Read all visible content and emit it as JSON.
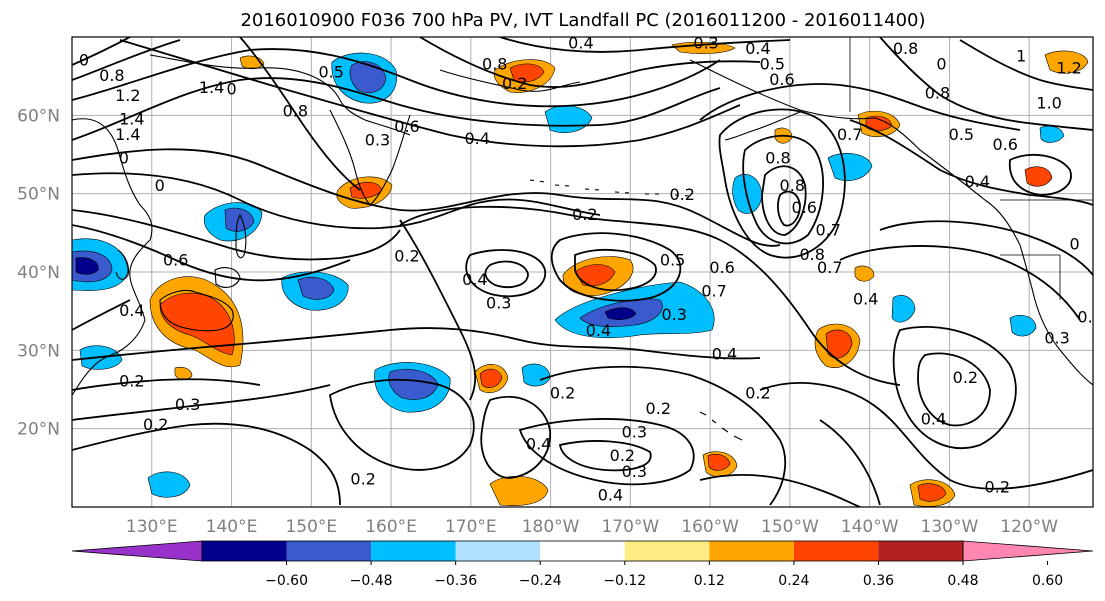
{
  "title": "2016010900 F036 700 hPa PV, IVT Landfall PC (2016011200 - 2016011400)",
  "map": {
    "lon_min": 120,
    "lon_max": 248,
    "lat_min": 10,
    "lat_max": 70,
    "lat_ticks": [
      {
        "value": 20,
        "label": "20°N"
      },
      {
        "value": 30,
        "label": "30°N"
      },
      {
        "value": 40,
        "label": "40°N"
      },
      {
        "value": 50,
        "label": "50°N"
      },
      {
        "value": 60,
        "label": "60°N"
      }
    ],
    "lon_ticks": [
      {
        "value": 130,
        "label": "130°E"
      },
      {
        "value": 140,
        "label": "140°E"
      },
      {
        "value": 150,
        "label": "150°E"
      },
      {
        "value": 160,
        "label": "160°E"
      },
      {
        "value": 170,
        "label": "170°E"
      },
      {
        "value": 180,
        "label": "180°W"
      },
      {
        "value": 190,
        "label": "170°W"
      },
      {
        "value": 200,
        "label": "160°W"
      },
      {
        "value": 210,
        "label": "150°W"
      },
      {
        "value": 220,
        "label": "140°W"
      },
      {
        "value": 230,
        "label": "130°W"
      },
      {
        "value": 240,
        "label": "120°W"
      }
    ],
    "contour_labels": [
      {
        "lon": 121.5,
        "lat": 67,
        "text": "0"
      },
      {
        "lon": 125,
        "lat": 65,
        "text": "0.8"
      },
      {
        "lon": 127,
        "lat": 62.5,
        "text": "1.2"
      },
      {
        "lon": 127.5,
        "lat": 59.5,
        "text": "1.4"
      },
      {
        "lon": 127,
        "lat": 57.5,
        "text": "1.4"
      },
      {
        "lon": 126.5,
        "lat": 54.5,
        "text": "0"
      },
      {
        "lon": 137.5,
        "lat": 63.5,
        "text": "1.4"
      },
      {
        "lon": 140,
        "lat": 63.3,
        "text": "0"
      },
      {
        "lon": 148,
        "lat": 60.5,
        "text": "0.8"
      },
      {
        "lon": 152.5,
        "lat": 65.5,
        "text": "0.5"
      },
      {
        "lon": 158.3,
        "lat": 56.8,
        "text": "0.3"
      },
      {
        "lon": 162,
        "lat": 58.5,
        "text": "0.6"
      },
      {
        "lon": 170.8,
        "lat": 57,
        "text": "0.4"
      },
      {
        "lon": 173,
        "lat": 66.5,
        "text": "0.8"
      },
      {
        "lon": 175.5,
        "lat": 64,
        "text": "0.2"
      },
      {
        "lon": 183.8,
        "lat": 69.2,
        "text": "0.4"
      },
      {
        "lon": 199.5,
        "lat": 69.2,
        "text": "0.3"
      },
      {
        "lon": 206,
        "lat": 68.5,
        "text": "0.4"
      },
      {
        "lon": 207.8,
        "lat": 66.5,
        "text": "0.5"
      },
      {
        "lon": 209,
        "lat": 64.5,
        "text": "0.6"
      },
      {
        "lon": 224.5,
        "lat": 68.5,
        "text": "0.8"
      },
      {
        "lon": 229,
        "lat": 66.5,
        "text": "0"
      },
      {
        "lon": 228.5,
        "lat": 62.8,
        "text": "0.8"
      },
      {
        "lon": 239,
        "lat": 67.5,
        "text": "1"
      },
      {
        "lon": 245,
        "lat": 66,
        "text": "1.2"
      },
      {
        "lon": 242.5,
        "lat": 61.5,
        "text": "1.0"
      },
      {
        "lon": 231.5,
        "lat": 57.5,
        "text": "0.5"
      },
      {
        "lon": 237,
        "lat": 56.2,
        "text": "0.6"
      },
      {
        "lon": 217.5,
        "lat": 57.5,
        "text": "0.7"
      },
      {
        "lon": 208.5,
        "lat": 54.5,
        "text": "0.8"
      },
      {
        "lon": 210.3,
        "lat": 51,
        "text": "0.8"
      },
      {
        "lon": 211.8,
        "lat": 48.2,
        "text": "0.6"
      },
      {
        "lon": 214.8,
        "lat": 45.3,
        "text": "0.7"
      },
      {
        "lon": 212.8,
        "lat": 42.2,
        "text": "0.8"
      },
      {
        "lon": 215,
        "lat": 40.5,
        "text": "0.7"
      },
      {
        "lon": 233.5,
        "lat": 51.5,
        "text": "0.4"
      },
      {
        "lon": 245.7,
        "lat": 43.5,
        "text": "0"
      },
      {
        "lon": 247,
        "lat": 34.2,
        "text": "0."
      },
      {
        "lon": 243.5,
        "lat": 31.5,
        "text": "0.3"
      },
      {
        "lon": 232,
        "lat": 26.5,
        "text": "0.2"
      },
      {
        "lon": 228,
        "lat": 21.2,
        "text": "0.4"
      },
      {
        "lon": 236,
        "lat": 12.5,
        "text": "0.2"
      },
      {
        "lon": 219.5,
        "lat": 36.5,
        "text": "0.4"
      },
      {
        "lon": 196.5,
        "lat": 49.8,
        "text": "0.2"
      },
      {
        "lon": 184.3,
        "lat": 47.3,
        "text": "0.2"
      },
      {
        "lon": 195.3,
        "lat": 41.5,
        "text": "0.5"
      },
      {
        "lon": 201.5,
        "lat": 40.5,
        "text": "0.6"
      },
      {
        "lon": 200.5,
        "lat": 37.5,
        "text": "0.7"
      },
      {
        "lon": 170.5,
        "lat": 39,
        "text": "0.4"
      },
      {
        "lon": 173.5,
        "lat": 36,
        "text": "0.3"
      },
      {
        "lon": 162,
        "lat": 42,
        "text": "0.2"
      },
      {
        "lon": 131,
        "lat": 51,
        "text": "0"
      },
      {
        "lon": 133,
        "lat": 41.5,
        "text": "0.6"
      },
      {
        "lon": 127.5,
        "lat": 35,
        "text": "0.4"
      },
      {
        "lon": 127.5,
        "lat": 26,
        "text": "0.2"
      },
      {
        "lon": 134.5,
        "lat": 23,
        "text": "0.3"
      },
      {
        "lon": 130.5,
        "lat": 20.5,
        "text": "0.2"
      },
      {
        "lon": 156.5,
        "lat": 13.5,
        "text": "0.2"
      },
      {
        "lon": 178.5,
        "lat": 18,
        "text": "0.4"
      },
      {
        "lon": 181.5,
        "lat": 24.5,
        "text": "0.2"
      },
      {
        "lon": 195.5,
        "lat": 34.5,
        "text": "0.3"
      },
      {
        "lon": 186,
        "lat": 32.5,
        "text": "0.4"
      },
      {
        "lon": 201.8,
        "lat": 29.5,
        "text": "0.4"
      },
      {
        "lon": 193.5,
        "lat": 22.5,
        "text": "0.2"
      },
      {
        "lon": 190.5,
        "lat": 19.5,
        "text": "0.3"
      },
      {
        "lon": 189,
        "lat": 16.5,
        "text": "0.2"
      },
      {
        "lon": 190.5,
        "lat": 14.5,
        "text": "0.3"
      },
      {
        "lon": 187.5,
        "lat": 11.5,
        "text": "0.4"
      },
      {
        "lon": 206,
        "lat": 24.5,
        "text": "0.2"
      }
    ]
  },
  "colorbar": {
    "colors": [
      "#9932CC",
      "#00008B",
      "#3A5BCD",
      "#00BFFF",
      "#B0E2FF",
      "#FFFFFF",
      "#FFEB84",
      "#FFA500",
      "#FF4500",
      "#B22222",
      "#FF86B0"
    ],
    "tick_labels": [
      "−0.60",
      "−0.48",
      "−0.36",
      "−0.24",
      "−0.12",
      "0.12",
      "0.24",
      "0.36",
      "0.48",
      "0.60"
    ]
  }
}
